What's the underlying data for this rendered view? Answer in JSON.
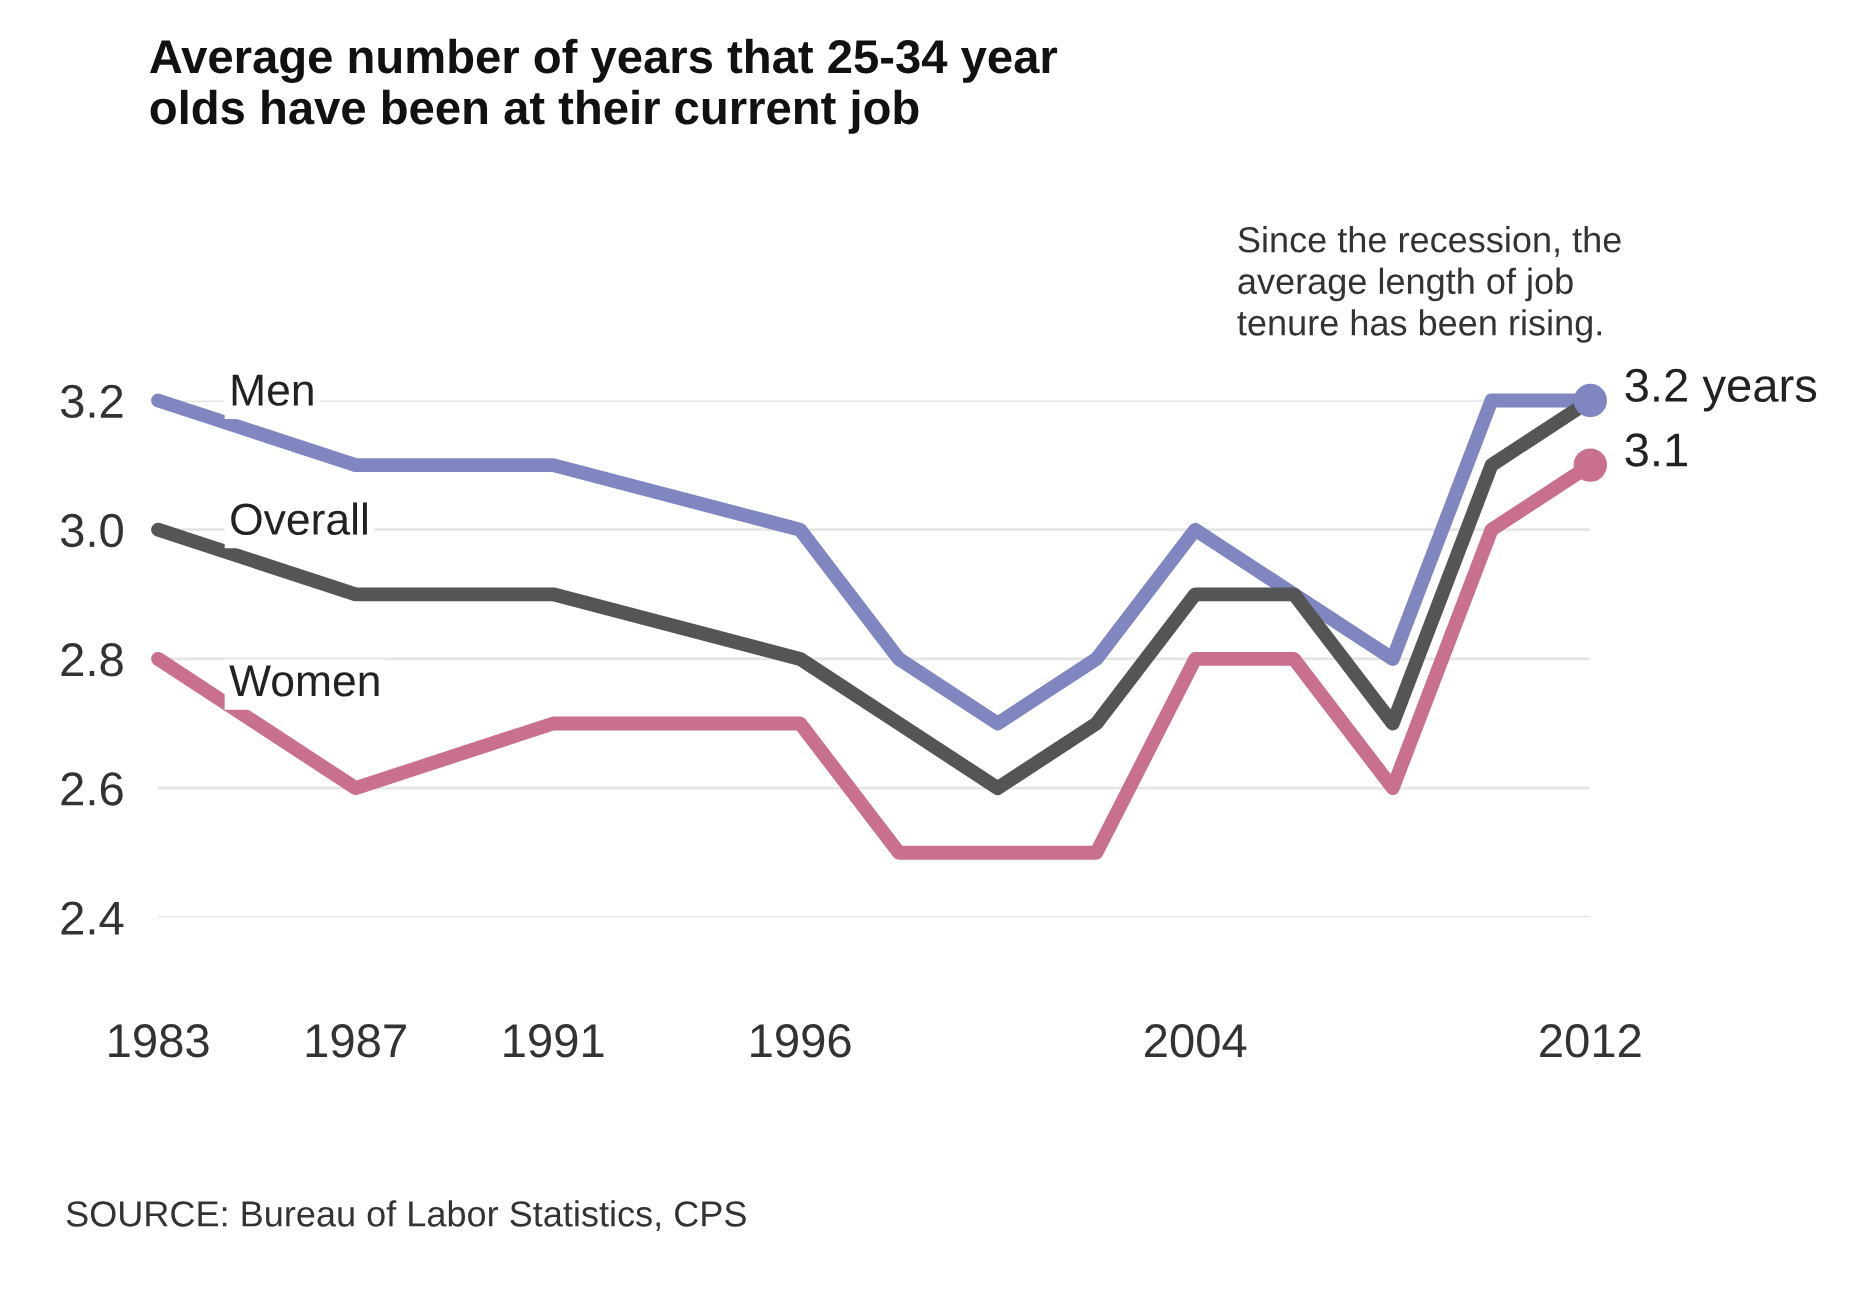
{
  "chart_data": {
    "type": "line",
    "title": "Average number of years that 25-34 year\nolds have been at their current job",
    "x": [
      1983,
      1987,
      1991,
      1996,
      1998,
      2000,
      2002,
      2004,
      2006,
      2008,
      2010,
      2012
    ],
    "series": [
      {
        "name": "Men",
        "color": "#7f86c0",
        "values": [
          3.2,
          3.1,
          3.1,
          3.0,
          2.8,
          2.7,
          2.8,
          3.0,
          2.9,
          2.8,
          3.2,
          3.2
        ]
      },
      {
        "name": "Overall",
        "color": "#555555",
        "values": [
          3.0,
          2.9,
          2.9,
          2.8,
          2.7,
          2.6,
          2.7,
          2.9,
          2.9,
          2.7,
          3.1,
          3.2
        ]
      },
      {
        "name": "Women",
        "color": "#c9708f",
        "values": [
          2.8,
          2.6,
          2.7,
          2.7,
          2.5,
          2.5,
          2.5,
          2.8,
          2.8,
          2.6,
          3.0,
          3.1
        ]
      }
    ],
    "xlim": [
      1983,
      2012
    ],
    "xticks": [
      1983,
      1987,
      1991,
      1996,
      2004,
      2012
    ],
    "ylim": [
      2.4,
      3.2
    ],
    "yticks": [
      2.4,
      2.6,
      2.8,
      {
        "value": 3.0,
        "label": "3.0"
      },
      3.2
    ],
    "grid": "y",
    "legend": false,
    "marker": "none",
    "line_style": "solid",
    "annotations": [
      {
        "text": "3.2 years",
        "x": 2012,
        "y": 3.2
      },
      {
        "text": "3.1",
        "x": 2012,
        "y": 3.1
      },
      "Since the recession, the\naverage length of job\ntenure has been rising.",
      "SOURCE: Bureau of Labor Statistics, CPS"
    ]
  }
}
